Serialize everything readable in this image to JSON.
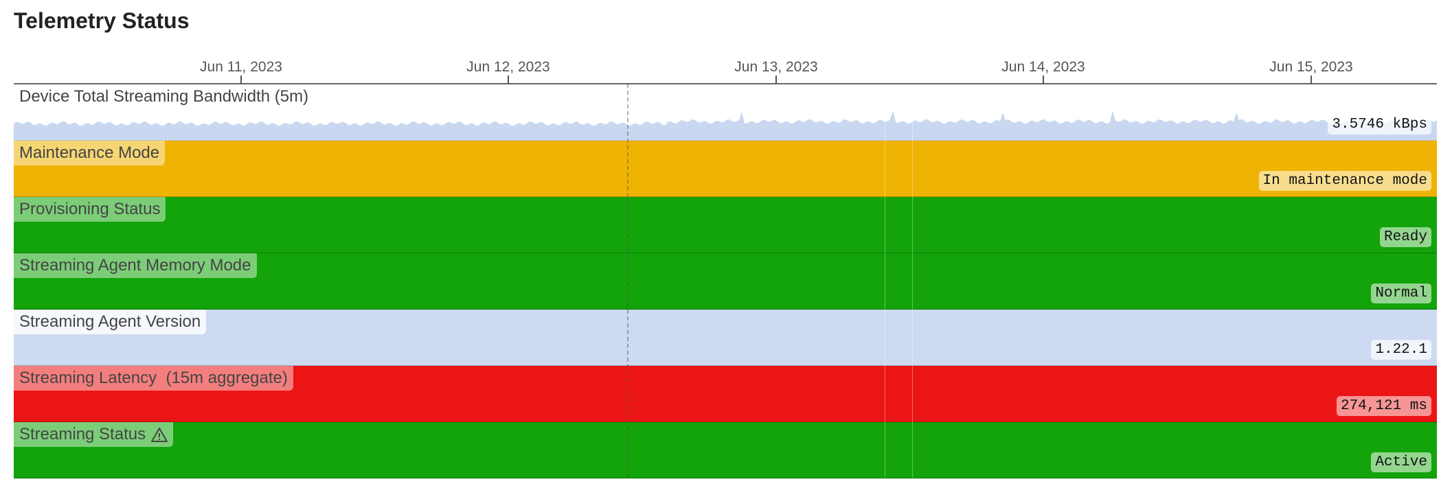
{
  "header": {
    "title": "Telemetry Status"
  },
  "axis": {
    "ticks": [
      "Jun 11, 2023",
      "Jun 12, 2023",
      "Jun 13, 2023",
      "Jun 14, 2023",
      "Jun 15, 2023"
    ]
  },
  "rows": [
    {
      "label": "Device Total Streaming Bandwidth (5m)",
      "value": "3.5746 kBps",
      "color": "#ffffff"
    },
    {
      "label": "Maintenance Mode",
      "value": "In maintenance mode",
      "color": "#efb403"
    },
    {
      "label": "Provisioning Status",
      "value": "Ready",
      "color": "#12a40a"
    },
    {
      "label": "Streaming Agent Memory Mode",
      "value": "Normal",
      "color": "#12a40a"
    },
    {
      "label": "Streaming Agent Version",
      "value": "1.22.1",
      "color": "#cddaf2"
    },
    {
      "label": "Streaming Latency  (15m aggregate)",
      "value": "274,121 ms",
      "color": "#ec1515"
    },
    {
      "label": "Streaming Status",
      "value": "Active",
      "color": "#12a40a",
      "warning": true
    }
  ]
}
